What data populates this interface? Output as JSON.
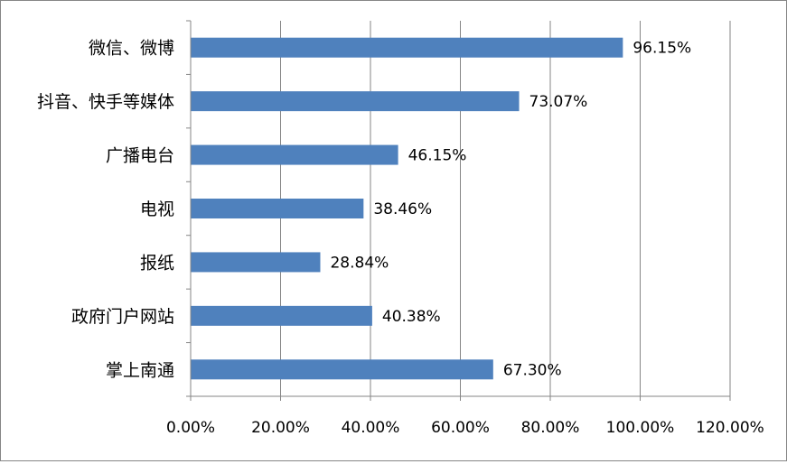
{
  "chart_data": {
    "type": "bar",
    "orientation": "horizontal",
    "categories": [
      "微信、微博",
      "抖音、快手等媒体",
      "广播电台",
      "电视",
      "报纸",
      "政府门户网站",
      "掌上南通"
    ],
    "values": [
      96.15,
      73.07,
      46.15,
      38.46,
      28.84,
      40.38,
      67.3
    ],
    "value_labels": [
      "96.15%",
      "73.07%",
      "46.15%",
      "38.46%",
      "28.84%",
      "40.38%",
      "67.30%"
    ],
    "xlim": [
      0,
      120
    ],
    "xticks": [
      0,
      20,
      40,
      60,
      80,
      100,
      120
    ],
    "xtick_labels": [
      "0.00%",
      "20.00%",
      "40.00%",
      "60.00%",
      "80.00%",
      "100.00%",
      "120.00%"
    ],
    "grid": true,
    "legend": "none",
    "colors": {
      "bar": "#4F81BD",
      "grid": "#868686",
      "axis": "#868686",
      "text": "#000000"
    }
  }
}
